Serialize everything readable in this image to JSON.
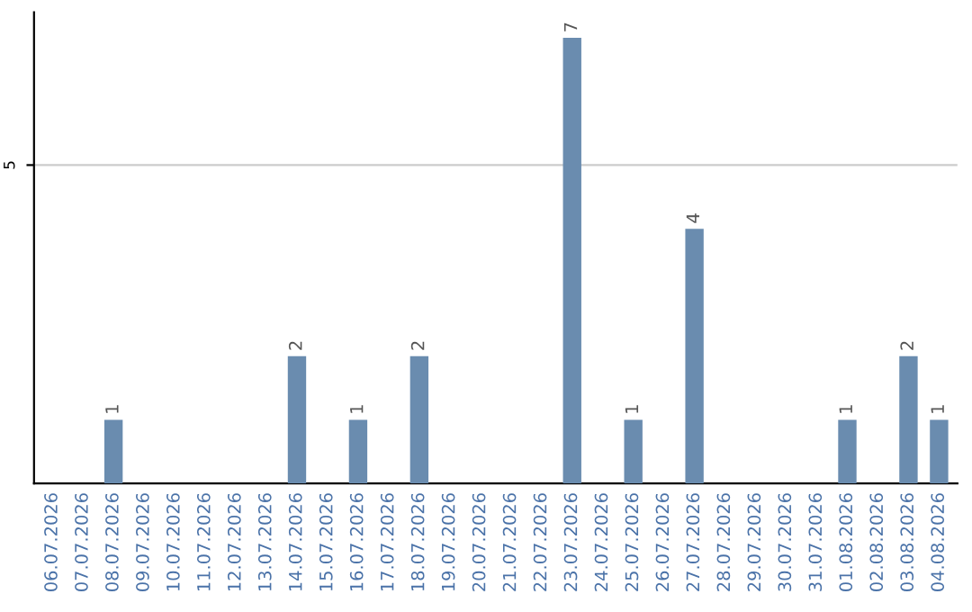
{
  "chart_data": {
    "type": "bar",
    "categories": [
      "06.07.2026",
      "07.07.2026",
      "08.07.2026",
      "09.07.2026",
      "10.07.2026",
      "11.07.2026",
      "12.07.2026",
      "13.07.2026",
      "14.07.2026",
      "15.07.2026",
      "16.07.2026",
      "17.07.2026",
      "18.07.2026",
      "19.07.2026",
      "20.07.2026",
      "21.07.2026",
      "22.07.2026",
      "23.07.2026",
      "24.07.2026",
      "25.07.2026",
      "26.07.2026",
      "27.07.2026",
      "28.07.2026",
      "29.07.2026",
      "30.07.2026",
      "31.07.2026",
      "01.08.2026",
      "02.08.2026",
      "03.08.2026",
      "04.08.2026"
    ],
    "values": [
      0,
      0,
      1,
      0,
      0,
      0,
      0,
      0,
      2,
      0,
      1,
      0,
      2,
      0,
      0,
      0,
      0,
      7,
      0,
      1,
      0,
      4,
      0,
      0,
      0,
      0,
      1,
      0,
      2,
      1
    ],
    "value_labels": [
      null,
      null,
      "1",
      null,
      null,
      null,
      null,
      null,
      "2",
      null,
      "1",
      null,
      "2",
      null,
      null,
      null,
      null,
      "7",
      null,
      "1",
      null,
      "4",
      null,
      null,
      null,
      null,
      "1",
      null,
      "2",
      "1"
    ],
    "color": "#6a8caf",
    "ylim": [
      0,
      7.4
    ],
    "yticks": [
      5
    ],
    "grid": "y"
  }
}
